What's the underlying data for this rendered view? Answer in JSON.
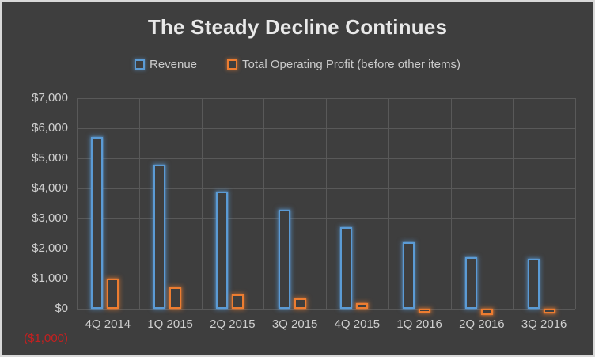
{
  "frame": {
    "background_color": "#3E3E3E",
    "border_color": "#D9D9D9"
  },
  "chart_data": {
    "type": "bar",
    "title": "The Steady Decline Continues",
    "title_color": "#E9E9E9",
    "categories": [
      "4Q 2014",
      "1Q 2015",
      "2Q 2015",
      "3Q 2015",
      "4Q 2015",
      "1Q 2016",
      "2Q 2016",
      "3Q 2016"
    ],
    "series": [
      {
        "name": "Revenue",
        "color": "#5B9BD5",
        "values": [
          5700,
          4800,
          3900,
          3300,
          2700,
          2200,
          1700,
          1650
        ]
      },
      {
        "name": "Total Operating Profit (before other items)",
        "color": "#ED7D31",
        "values": [
          1000,
          700,
          475,
          350,
          175,
          -50,
          -200,
          -150
        ]
      }
    ],
    "y_axis": {
      "min": -1000,
      "max": 7000,
      "step": 1000,
      "tick_labels": [
        "$7,000",
        "$6,000",
        "$5,000",
        "$4,000",
        "$3,000",
        "$2,000",
        "$1,000",
        "$0",
        "($1,000)"
      ],
      "tick_color": "#CFCFCF",
      "negative_tick_color": "#C42020"
    },
    "x_axis": {
      "tick_color": "#CFCFCF"
    },
    "legend": {
      "position": "top-center",
      "marker_style": "hollow-square"
    },
    "grid": {
      "shown": true,
      "color": "#595959"
    },
    "bar_style": "hollow-outline-with-outer-glow"
  }
}
